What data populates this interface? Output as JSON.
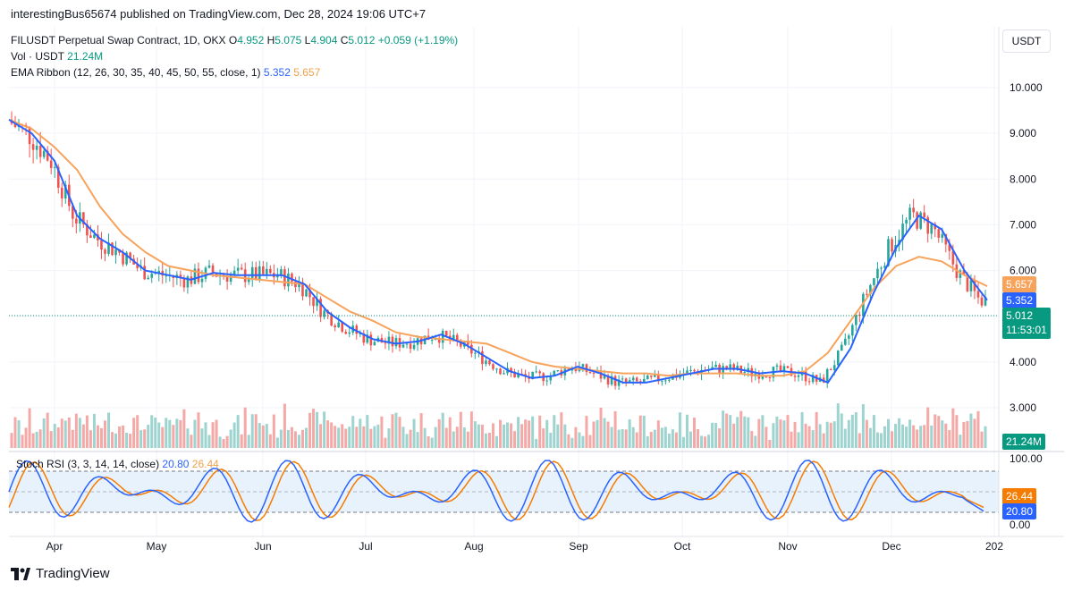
{
  "header": {
    "published": "interestingBus65674 published on TradingView.com, Dec 28, 2024 19:06 UTC+7"
  },
  "legend": {
    "symbol": "FILUSDT Perpetual Swap Contract, 1D, OKX",
    "o_label": "O",
    "o": "4.952",
    "h_label": "H",
    "h": "5.075",
    "l_label": "L",
    "l": "4.904",
    "c_label": "C",
    "c": "5.012",
    "change": "+0.059 (+1.19%)",
    "vol_label": "Vol · USDT",
    "vol": "21.24M",
    "ema_label": "EMA Ribbon (12, 26, 30, 35, 40, 45, 50, 55, close, 1)",
    "ema_fast": "5.352",
    "ema_slow": "5.657"
  },
  "currency": "USDT",
  "price_tags": {
    "ema_slow": "5.657",
    "ema_fast": "5.352",
    "last": "5.012",
    "countdown": "11:53:01",
    "volume": "21.24M",
    "rsi_d": "26.44",
    "rsi_k": "20.80"
  },
  "stoch": {
    "label": "Stoch RSI (3, 3, 14, 14, close)",
    "k": "20.80",
    "d": "26.44"
  },
  "colors": {
    "up": "#26a69a",
    "down": "#ef5350",
    "ema_fast": "#2962ff",
    "ema_slow": "#f7a35c",
    "k": "#2962ff",
    "d": "#f57c00"
  },
  "footer": {
    "brand": "TradingView"
  },
  "chart_data": {
    "type": "line",
    "price_axis": {
      "ticks": [
        "10.000",
        "9.000",
        "8.000",
        "7.000",
        "6.000",
        "5.000",
        "4.000",
        "3.000"
      ],
      "range": [
        2.4,
        10.8
      ]
    },
    "stoch_axis": {
      "ticks": [
        "100.00",
        "0.00"
      ],
      "range": [
        0,
        100
      ]
    },
    "time_axis": {
      "ticks": [
        "Apr",
        "May",
        "Jun",
        "Jul",
        "Aug",
        "Sep",
        "Oct",
        "Nov",
        "Dec",
        "202"
      ]
    },
    "series": [
      {
        "name": "EMA Ribbon",
        "values": [
          9.3,
          9.1,
          8.7,
          8.2,
          7.4,
          6.8,
          6.4,
          6.1,
          6.0,
          5.9,
          5.85,
          5.8,
          5.75,
          5.7,
          5.4,
          5.1,
          4.9,
          4.65,
          4.55,
          4.5,
          4.45,
          4.4,
          4.2,
          4.0,
          3.9,
          3.85,
          3.8,
          3.75,
          3.75,
          3.7,
          3.75,
          3.75,
          3.75,
          3.7,
          3.7,
          3.8,
          4.2,
          4.9,
          5.6,
          6.1,
          6.3,
          6.2,
          5.9,
          5.657
        ]
      },
      {
        "name": "EMA Ribbon",
        "values": [
          9.3,
          9.0,
          8.4,
          7.2,
          6.7,
          6.4,
          6.0,
          5.9,
          5.8,
          5.95,
          5.9,
          5.9,
          5.9,
          5.7,
          5.1,
          4.75,
          4.5,
          4.4,
          4.45,
          4.6,
          4.4,
          4.1,
          3.8,
          3.65,
          3.7,
          3.9,
          3.75,
          3.55,
          3.55,
          3.65,
          3.75,
          3.85,
          3.85,
          3.75,
          3.8,
          3.75,
          3.55,
          4.3,
          5.5,
          6.5,
          7.2,
          6.9,
          6.0,
          5.352
        ]
      }
    ],
    "volume_series": [
      {
        "name": "Vol · USDT",
        "last": "21.24M"
      }
    ],
    "stoch_series": [
      {
        "name": "K",
        "last": 20.8
      },
      {
        "name": "D",
        "last": 26.44
      }
    ]
  }
}
